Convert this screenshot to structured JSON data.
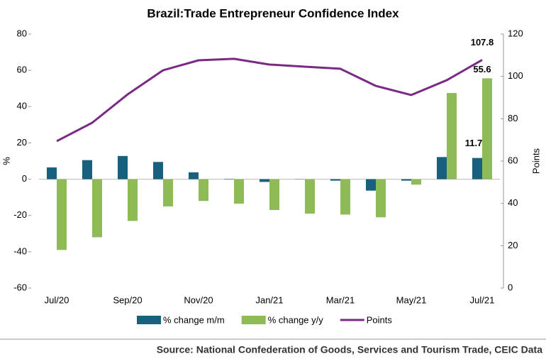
{
  "chart_data": {
    "type": "bar_line",
    "title": "Brazil:Trade Entrepreneur Confidence Index",
    "ylabel": "%",
    "y2label": "Points",
    "source": "Source: National Confederation of Goods, Services and Tourism Trade, CEIC Data",
    "categories": [
      "Jul/20",
      null,
      "Sep/20",
      null,
      "Nov/20",
      null,
      "Jan/21",
      null,
      "Mar/21",
      null,
      "May/21",
      null,
      "Jul/21"
    ],
    "series": [
      {
        "name": "% change m/m",
        "type": "bar",
        "color": "#17607e",
        "values": [
          6.5,
          10.5,
          12.8,
          9.5,
          3.8,
          0.2,
          -1.5,
          0.1,
          -0.8,
          -6.3,
          -0.8,
          12.2,
          11.7
        ]
      },
      {
        "name": "% change y/y",
        "type": "bar",
        "color": "#8fba58",
        "values": [
          -39,
          -32,
          -23,
          -15,
          -12,
          -13.5,
          -17,
          -19,
          -19.5,
          -21,
          -3,
          47.5,
          55.6
        ]
      },
      {
        "name": "Points",
        "type": "line",
        "axis": "y2",
        "color": "#7a2a84",
        "values": [
          69.4,
          78.1,
          91.5,
          102.9,
          107.6,
          108.3,
          105.6,
          104.6,
          103.6,
          95.5,
          91.2,
          98.2,
          107.8
        ]
      }
    ],
    "ylim": [
      -60,
      80
    ],
    "yticks": [
      -60,
      -40,
      -20,
      0,
      20,
      40,
      60,
      80
    ],
    "y2lim": [
      0,
      120
    ],
    "y2ticks": [
      0,
      20,
      40,
      60,
      80,
      100,
      120
    ],
    "grid": false,
    "legend": "bottom"
  }
}
